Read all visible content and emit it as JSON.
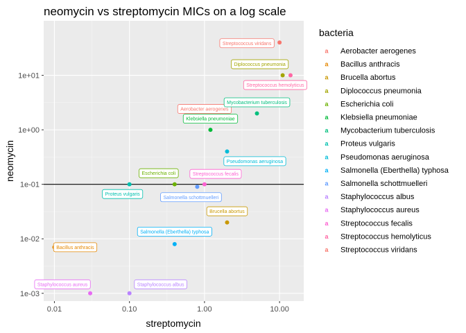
{
  "chart_data": {
    "type": "scatter",
    "title": "neomycin vs streptomycin MICs on a log scale",
    "xlabel": "streptomycin",
    "ylabel": "neomycin",
    "x_scale": "log10",
    "y_scale": "log10",
    "xlim": [
      0.0072,
      21
    ],
    "ylim": [
      0.00072,
      100
    ],
    "x_ticks": [
      0.01,
      0.1,
      1,
      10
    ],
    "x_tick_labels": [
      "0.01",
      "0.10",
      "1.00",
      "10.00"
    ],
    "y_ticks": [
      0.001,
      0.01,
      0.1,
      1,
      10
    ],
    "y_tick_labels": [
      "1e-03",
      "1e-02",
      "1e-01",
      "1e+00",
      "1e+01"
    ],
    "hline": 0.1,
    "grid": true,
    "legend_title": "bacteria",
    "legend_position": "right",
    "series": [
      {
        "name": "Aerobacter aerogenes",
        "color": "#F8766D",
        "x": 1,
        "y": 1.6
      },
      {
        "name": "Bacillus anthracis",
        "color": "#E58700",
        "x": 0.01,
        "y": 0.007
      },
      {
        "name": "Brucella abortus",
        "color": "#C99800",
        "x": 2,
        "y": 0.02
      },
      {
        "name": "Diplococcus pneumonia",
        "color": "#A3A500",
        "x": 11,
        "y": 10
      },
      {
        "name": "Escherichia coli",
        "color": "#6BB100",
        "x": 0.4,
        "y": 0.1
      },
      {
        "name": "Klebsiella pneumoniae",
        "color": "#00BA38",
        "x": 1.2,
        "y": 1
      },
      {
        "name": "Mycobacterium tuberculosis",
        "color": "#00BF7D",
        "x": 5,
        "y": 2
      },
      {
        "name": "Proteus vulgaris",
        "color": "#00C0AF",
        "x": 0.1,
        "y": 0.1
      },
      {
        "name": "Pseudomonas aeruginosa",
        "color": "#00BCD8",
        "x": 2,
        "y": 0.4
      },
      {
        "name": "Salmonella (Eberthella) typhosa",
        "color": "#00B0F6",
        "x": 0.4,
        "y": 0.008
      },
      {
        "name": "Salmonella schottmuelleri",
        "color": "#619CFF",
        "x": 0.8,
        "y": 0.09
      },
      {
        "name": "Staphylococcus albus",
        "color": "#B983FF",
        "x": 0.1,
        "y": 0.001
      },
      {
        "name": "Staphylococcus aureus",
        "color": "#E76BF3",
        "x": 0.03,
        "y": 0.001
      },
      {
        "name": "Streptococcus fecalis",
        "color": "#FD61D1",
        "x": 1,
        "y": 0.1
      },
      {
        "name": "Streptococcus hemolyticus",
        "color": "#FF67A4",
        "x": 14,
        "y": 10
      },
      {
        "name": "Streptococcus viridans",
        "color": "#F8766D",
        "x": 10,
        "y": 40
      }
    ]
  }
}
